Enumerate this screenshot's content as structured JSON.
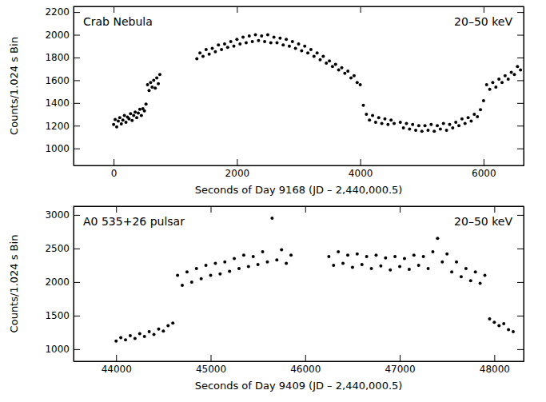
{
  "chart_data": [
    {
      "type": "scatter",
      "title": "Crab Nebula",
      "subtitle": "20–50 keV",
      "x_label": "Seconds of Day 9168 (JD – 2,440,000.5)",
      "y_label": "Counts/1.024 s Bin",
      "color": "#000000",
      "marker": "circle",
      "xlim": [
        -650,
        6650
      ],
      "xticks": [
        0,
        2000,
        4000,
        6000
      ],
      "ylim": [
        850,
        2250
      ],
      "yticks": [
        1000,
        1200,
        1400,
        1600,
        1800,
        2000,
        2200
      ],
      "x": [
        0,
        25,
        50,
        75,
        100,
        125,
        150,
        175,
        200,
        225,
        250,
        275,
        300,
        325,
        350,
        375,
        400,
        425,
        450,
        475,
        500,
        525,
        550,
        575,
        600,
        625,
        650,
        675,
        700,
        725,
        750,
        1350,
        1400,
        1450,
        1500,
        1550,
        1600,
        1650,
        1700,
        1750,
        1800,
        1850,
        1900,
        1950,
        2000,
        2050,
        2100,
        2150,
        2200,
        2250,
        2300,
        2350,
        2400,
        2450,
        2500,
        2550,
        2600,
        2650,
        2700,
        2750,
        2800,
        2850,
        2900,
        2950,
        3000,
        3050,
        3100,
        3150,
        3200,
        3250,
        3300,
        3350,
        3400,
        3450,
        3500,
        3550,
        3600,
        3650,
        3700,
        3750,
        3800,
        3850,
        3900,
        3950,
        4000,
        4050,
        4100,
        4150,
        4200,
        4250,
        4300,
        4350,
        4400,
        4450,
        4500,
        4550,
        4650,
        4700,
        4750,
        4800,
        4850,
        4900,
        4950,
        5000,
        5050,
        5100,
        5150,
        5200,
        5250,
        5300,
        5350,
        5400,
        5450,
        5500,
        5550,
        5600,
        5650,
        5700,
        5750,
        5800,
        5850,
        5900,
        5950,
        6000,
        6050,
        6100,
        6150,
        6200,
        6250,
        6300,
        6350,
        6400,
        6450,
        6500,
        6550,
        6600
      ],
      "values": [
        1210,
        1255,
        1190,
        1240,
        1270,
        1215,
        1250,
        1290,
        1230,
        1275,
        1260,
        1305,
        1245,
        1290,
        1320,
        1270,
        1310,
        1345,
        1290,
        1350,
        1330,
        1390,
        1560,
        1510,
        1580,
        1540,
        1600,
        1530,
        1620,
        1570,
        1650,
        1790,
        1840,
        1810,
        1870,
        1830,
        1880,
        1850,
        1910,
        1870,
        1920,
        1890,
        1940,
        1900,
        1960,
        1920,
        1980,
        1930,
        1990,
        1940,
        2000,
        1950,
        1990,
        1940,
        2000,
        1930,
        1980,
        1930,
        1970,
        1910,
        1960,
        1900,
        1940,
        1880,
        1920,
        1860,
        1900,
        1840,
        1870,
        1810,
        1840,
        1780,
        1810,
        1750,
        1770,
        1720,
        1740,
        1690,
        1710,
        1660,
        1680,
        1620,
        1640,
        1580,
        1560,
        1380,
        1300,
        1250,
        1290,
        1230,
        1270,
        1220,
        1260,
        1210,
        1250,
        1220,
        1230,
        1180,
        1220,
        1170,
        1210,
        1160,
        1200,
        1150,
        1200,
        1160,
        1210,
        1150,
        1200,
        1170,
        1220,
        1160,
        1210,
        1180,
        1230,
        1200,
        1260,
        1220,
        1270,
        1240,
        1300,
        1280,
        1340,
        1420,
        1560,
        1520,
        1580,
        1540,
        1610,
        1580,
        1640,
        1610,
        1670,
        1650,
        1720,
        1690
      ]
    },
    {
      "type": "scatter",
      "title": "A0 535+26 pulsar",
      "subtitle": "20–50 keV",
      "x_label": "Seconds of Day 9409 (JD – 2,440,000.5)",
      "y_label": "Counts/1.024 s Bin",
      "color": "#000000",
      "marker": "circle",
      "xlim": [
        43550,
        48310
      ],
      "xticks": [
        44000,
        45000,
        46000,
        47000,
        48000
      ],
      "ylim": [
        820,
        3130
      ],
      "yticks": [
        1000,
        1500,
        2000,
        2500,
        3000
      ],
      "x": [
        44000,
        44050,
        44100,
        44150,
        44200,
        44250,
        44300,
        44350,
        44400,
        44450,
        44500,
        44550,
        44600,
        44650,
        44700,
        44750,
        44800,
        44850,
        44900,
        44950,
        45000,
        45050,
        45100,
        45150,
        45200,
        45250,
        45300,
        45350,
        45400,
        45450,
        45500,
        45550,
        45600,
        45650,
        45700,
        45750,
        45800,
        45850,
        46250,
        46300,
        46350,
        46400,
        46450,
        46500,
        46550,
        46600,
        46650,
        46700,
        46750,
        46800,
        46850,
        46900,
        46950,
        47000,
        47050,
        47100,
        47150,
        47200,
        47250,
        47300,
        47350,
        47400,
        47450,
        47500,
        47550,
        47600,
        47650,
        47700,
        47750,
        47800,
        47850,
        47900,
        47950,
        48000,
        48050,
        48100,
        48150,
        48200
      ],
      "values": [
        1120,
        1170,
        1140,
        1200,
        1160,
        1230,
        1190,
        1260,
        1220,
        1300,
        1270,
        1350,
        1390,
        2100,
        1950,
        2150,
        2000,
        2200,
        2050,
        2250,
        2100,
        2280,
        2120,
        2300,
        2160,
        2350,
        2200,
        2400,
        2230,
        2380,
        2260,
        2450,
        2300,
        2950,
        2330,
        2480,
        2280,
        2400,
        2380,
        2250,
        2450,
        2280,
        2400,
        2220,
        2420,
        2260,
        2380,
        2200,
        2400,
        2240,
        2360,
        2180,
        2380,
        2230,
        2350,
        2190,
        2400,
        2250,
        2380,
        2200,
        2450,
        2650,
        2300,
        2420,
        2150,
        2300,
        2080,
        2200,
        2020,
        2150,
        1980,
        2100,
        1450,
        1400,
        1350,
        1380,
        1290,
        1260
      ]
    }
  ]
}
